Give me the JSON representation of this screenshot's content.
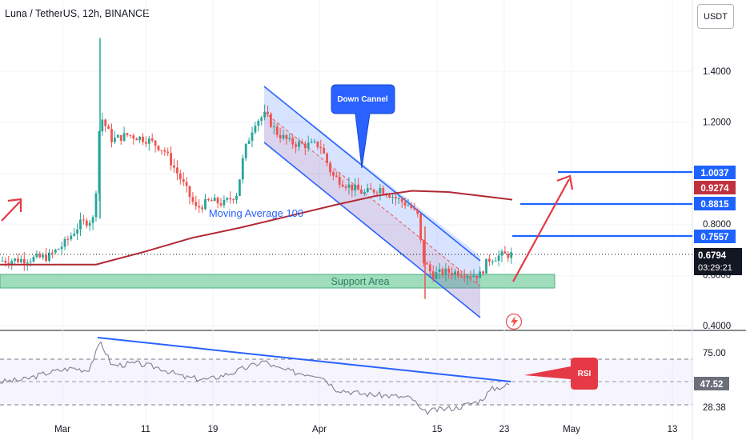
{
  "header": {
    "symbol_title": "Luna / TetherUS, 12h, BINANCE",
    "currency_button": "USDT"
  },
  "colors": {
    "up": "#26a69a",
    "down": "#ef5350",
    "ma": "#b22833",
    "channel": "#2962ff",
    "level_line": "#1e63ff",
    "support_fill": "#8fd7b0",
    "callout": "#2962ff",
    "rsi_badge": "#e53946",
    "ma_badge": "#c0313f"
  },
  "chart_data": [
    {
      "type": "candlestick",
      "title": "Luna / TetherUS, 12h, BINANCE",
      "y_ticks": [
        "1.4000",
        "1.2000",
        "0.8000",
        "0.6000",
        "0.4000"
      ],
      "y_range": [
        0.4,
        1.65
      ],
      "x_ticks": [
        "Mar",
        "11",
        "19",
        "Apr",
        "15",
        "23",
        "May",
        "13"
      ],
      "price_levels": [
        {
          "label": "1.0037",
          "value": 1.0037
        },
        {
          "label": "0.8815",
          "value": 0.8815
        },
        {
          "label": "0.7557",
          "value": 0.7557
        }
      ],
      "moving_average_value_label": "0.9274",
      "last_price": "0.6794",
      "countdown": "03:29:21",
      "series": [
        {
          "name": "Moving Average 100",
          "type": "line"
        }
      ],
      "annotations": {
        "down_channel": "Down Cannel",
        "support": "Support Area",
        "moving_average": "Moving Average 100"
      }
    },
    {
      "type": "line",
      "title": "RSI",
      "y_ticks": [
        "75.00",
        "28.38"
      ],
      "y_range": [
        20,
        90
      ],
      "last_value": "47.52",
      "annotation": "RSI"
    }
  ]
}
